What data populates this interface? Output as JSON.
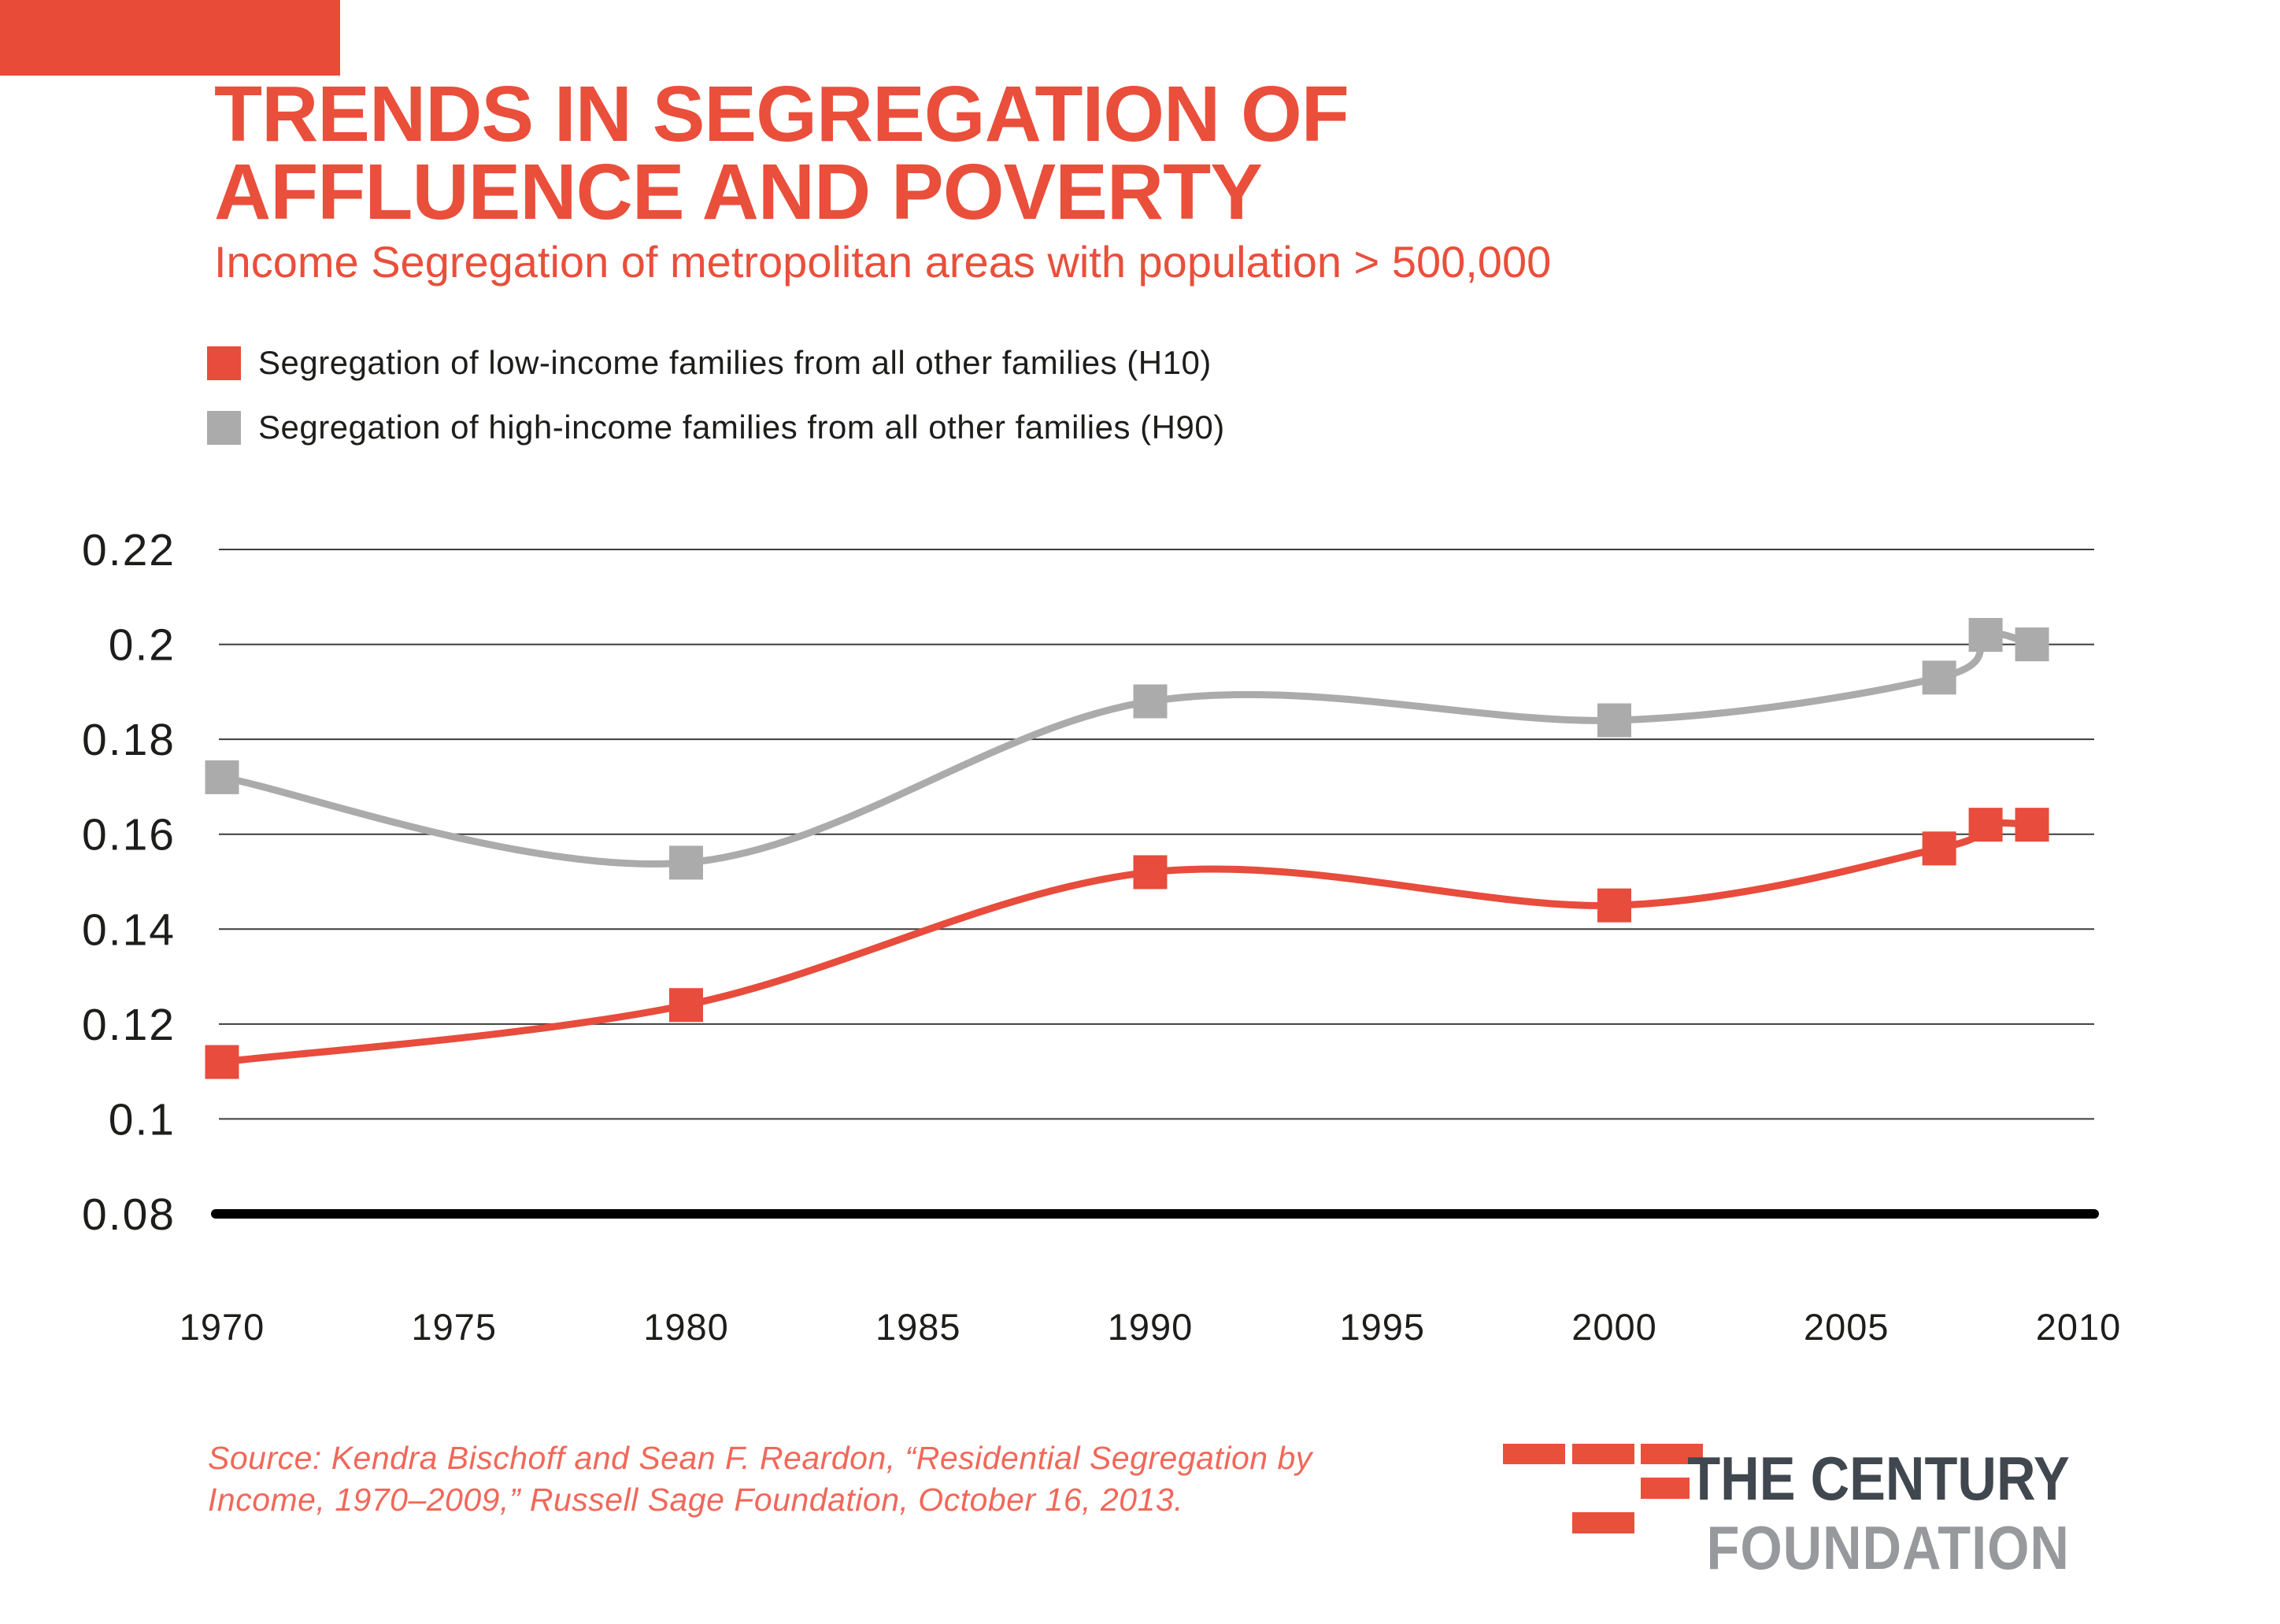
{
  "page": {
    "background": "#ffffff",
    "accent_bar_color": "#e84b38"
  },
  "header": {
    "title_line1": "TRENDS IN SEGREGATION OF",
    "title_line2": "AFFLUENCE AND POVERTY",
    "title_color": "#e94f3b",
    "subtitle": "Income Segregation of metropolitan areas with population > 500,000",
    "subtitle_color": "#e94f3b"
  },
  "legend": {
    "items": [
      {
        "label": "Segregation of low-income families from all other families (H10)",
        "color": "#e74c3c"
      },
      {
        "label": "Segregation of high-income families from all other families (H90)",
        "color": "#ababab"
      }
    ]
  },
  "chart_data": {
    "type": "line",
    "title": "TRENDS IN SEGREGATION OF AFFLUENCE AND POVERTY",
    "subtitle": "Income Segregation of metropolitan areas with population > 500,000",
    "x": [
      1970,
      1980,
      1990,
      2000,
      2007,
      2008,
      2009
    ],
    "series": [
      {
        "name": "Segregation of low-income families from all other families (H10)",
        "color": "#e74c3c",
        "values": [
          0.112,
          0.124,
          0.152,
          0.145,
          0.157,
          0.162,
          0.162
        ]
      },
      {
        "name": "Segregation of high-income families from all other families (H90)",
        "color": "#ababab",
        "values": [
          0.172,
          0.154,
          0.188,
          0.184,
          0.193,
          0.202,
          0.2
        ]
      }
    ],
    "xlabel": "",
    "ylabel": "",
    "x_ticks": [
      "1970",
      "1975",
      "1980",
      "1985",
      "1990",
      "1995",
      "2000",
      "2005",
      "2010"
    ],
    "y_ticks": [
      "0.22",
      "0.2",
      "0.18",
      "0.16",
      "0.14",
      "0.12",
      "0.1",
      "0.08"
    ],
    "xlim": [
      1970,
      2010
    ],
    "ylim": [
      0.08,
      0.22
    ],
    "grid": "horizontal",
    "gridline_color": "#3c3c3b",
    "baseline_value": 0.08,
    "baseline_color": "#000000",
    "marker": "square",
    "marker_size": 43,
    "line_width": 9,
    "tick_label_color": "#1d1d1b",
    "legend_position": "top-left"
  },
  "source": {
    "line1": "Source: Kendra Bischoff and Sean F. Reardon, “Residential Segregation by",
    "line2": "Income, 1970–2009,” Russell Sage Foundation, October 16, 2013.",
    "color": "#f0685a"
  },
  "logo": {
    "text_top": "THE CENTURY",
    "text_bottom": "FOUNDATION",
    "text_top_color": "#40474f",
    "text_bottom_color": "#97999c",
    "mark_color": "#e8503c"
  }
}
